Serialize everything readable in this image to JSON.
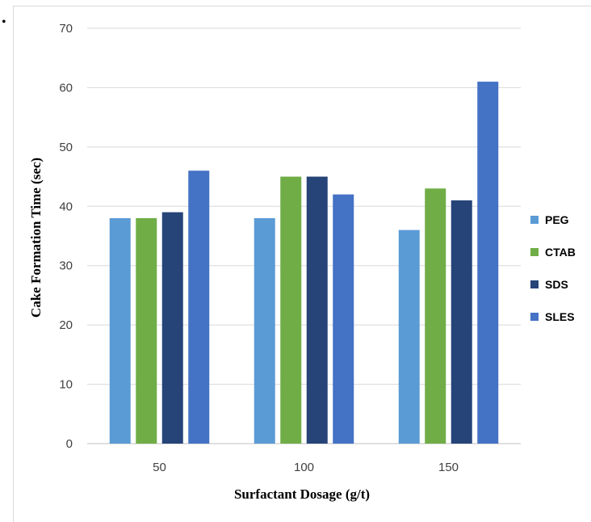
{
  "chart_data": {
    "type": "bar",
    "title": "",
    "xlabel": "Surfactant Dosage (g/t)",
    "ylabel": "Cake Formation Time (sec)",
    "ylim": [
      0,
      70
    ],
    "yticks": [
      0,
      10,
      20,
      30,
      40,
      50,
      60,
      70
    ],
    "categories": [
      "50",
      "100",
      "150"
    ],
    "grid": "horizontal",
    "legend_position": "right",
    "series": [
      {
        "name": "PEG",
        "color": "#5b9bd5",
        "values": [
          38,
          38,
          36
        ]
      },
      {
        "name": "CTAB",
        "color": "#70ad47",
        "values": [
          38,
          45,
          43
        ]
      },
      {
        "name": "SDS",
        "color": "#264478",
        "values": [
          39,
          45,
          41
        ]
      },
      {
        "name": "SLES",
        "color": "#4472c4",
        "values": [
          46,
          42,
          61
        ]
      }
    ]
  }
}
